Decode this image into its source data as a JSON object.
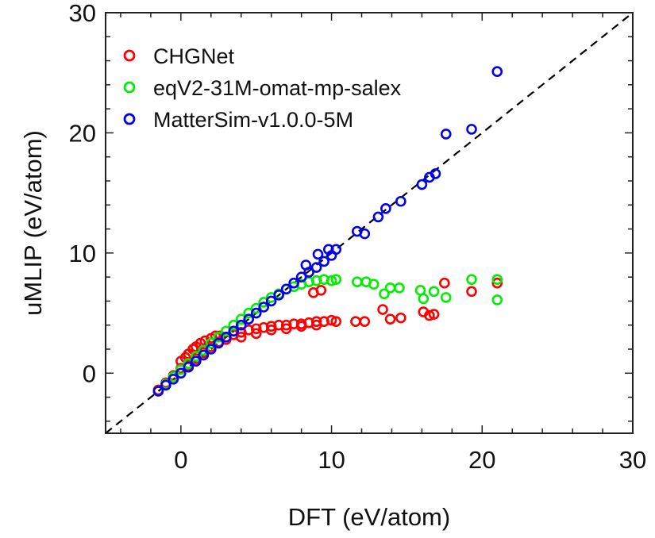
{
  "chart_data": {
    "type": "scatter",
    "title": "",
    "xlabel": "DFT (eV/atom)",
    "ylabel": "uMLIP (eV/atom)",
    "xlim": [
      -5,
      30
    ],
    "ylim": [
      -5,
      30
    ],
    "xticks": [
      0,
      10,
      20,
      30
    ],
    "yticks": [
      0,
      10,
      20,
      30
    ],
    "xtick_labels": [
      "0",
      "10",
      "20",
      "30"
    ],
    "ytick_labels": [
      "0",
      "10",
      "20",
      "30"
    ],
    "grid": false,
    "legend_position": "top-left",
    "reference_line": {
      "style": "dashed",
      "color": "#000000",
      "equation": "y = x"
    },
    "series": [
      {
        "name": "CHGNet",
        "color": "#ff0000",
        "points": [
          [
            -1.5,
            -1.4
          ],
          [
            -1,
            -0.8
          ],
          [
            -0.5,
            -0.2
          ],
          [
            0,
            0.4
          ],
          [
            0,
            1
          ],
          [
            0.3,
            1.3
          ],
          [
            0.5,
            1.6
          ],
          [
            0.8,
            2
          ],
          [
            1,
            2.2
          ],
          [
            1.3,
            2.5
          ],
          [
            1.6,
            2.7
          ],
          [
            2,
            2.9
          ],
          [
            2.3,
            3.1
          ],
          [
            2.6,
            3.1
          ],
          [
            3,
            3.0
          ],
          [
            3.5,
            3.2
          ],
          [
            4,
            3.4
          ],
          [
            4.5,
            3.6
          ],
          [
            5,
            3.7
          ],
          [
            5.5,
            3.8
          ],
          [
            6,
            3.9
          ],
          [
            6.5,
            4.0
          ],
          [
            7,
            4.0
          ],
          [
            7.5,
            4.1
          ],
          [
            8,
            4.1
          ],
          [
            8.5,
            4.2
          ],
          [
            9,
            4.3
          ],
          [
            9.5,
            4.3
          ],
          [
            10,
            4.4
          ],
          [
            10.3,
            4.3
          ],
          [
            0.5,
            0.6
          ],
          [
            1,
            1.2
          ],
          [
            1.5,
            1.7
          ],
          [
            2,
            2.2
          ],
          [
            2.5,
            2.6
          ],
          [
            3,
            2.8
          ],
          [
            4,
            3.0
          ],
          [
            5,
            3.3
          ],
          [
            6,
            3.6
          ],
          [
            7,
            3.7
          ],
          [
            8,
            3.9
          ],
          [
            9,
            4.0
          ],
          [
            8.8,
            6.7
          ],
          [
            9.3,
            6.9
          ],
          [
            11.6,
            4.3
          ],
          [
            12.2,
            4.3
          ],
          [
            13.4,
            5.3
          ],
          [
            13.9,
            4.5
          ],
          [
            14.6,
            4.6
          ],
          [
            16.1,
            5.1
          ],
          [
            16.5,
            4.8
          ],
          [
            16.8,
            4.9
          ],
          [
            17.5,
            7.5
          ],
          [
            19.3,
            6.8
          ],
          [
            21.0,
            7.5
          ]
        ]
      },
      {
        "name": "eqV2-31M-omat-mp-salex",
        "color": "#00ee00",
        "points": [
          [
            -1.5,
            -1.5
          ],
          [
            -1,
            -0.9
          ],
          [
            -0.5,
            -0.3
          ],
          [
            0,
            0.3
          ],
          [
            0.5,
            0.8
          ],
          [
            1,
            1.4
          ],
          [
            1.5,
            1.9
          ],
          [
            2,
            2.5
          ],
          [
            2.5,
            3
          ],
          [
            3,
            3.5
          ],
          [
            3.5,
            4
          ],
          [
            4,
            4.5
          ],
          [
            4.5,
            5
          ],
          [
            5,
            5.4
          ],
          [
            5.5,
            5.9
          ],
          [
            6,
            6.3
          ],
          [
            6.5,
            6.6
          ],
          [
            7,
            7
          ],
          [
            7.5,
            7.2
          ],
          [
            8,
            7.4
          ],
          [
            8.5,
            7.6
          ],
          [
            9,
            7.7
          ],
          [
            9.5,
            7.8
          ],
          [
            10,
            7.7
          ],
          [
            10.3,
            7.8
          ],
          [
            11.7,
            7.6
          ],
          [
            12.3,
            7.6
          ],
          [
            12.8,
            7.4
          ],
          [
            13.5,
            6.6
          ],
          [
            13.9,
            7.1
          ],
          [
            14.5,
            7.1
          ],
          [
            15.9,
            6.9
          ],
          [
            16.1,
            6.2
          ],
          [
            16.8,
            6.8
          ],
          [
            17.6,
            6.3
          ],
          [
            19.3,
            7.8
          ],
          [
            21.0,
            7.8
          ],
          [
            21.0,
            6.1
          ]
        ]
      },
      {
        "name": "MatterSim-v1.0.0-5M",
        "color": "#0000ee",
        "points": [
          [
            -1.5,
            -1.5
          ],
          [
            -1,
            -1
          ],
          [
            -0.5,
            -0.5
          ],
          [
            0,
            0
          ],
          [
            0.5,
            0.5
          ],
          [
            1,
            1
          ],
          [
            1.5,
            1.5
          ],
          [
            2,
            2
          ],
          [
            2.5,
            2.5
          ],
          [
            3,
            3
          ],
          [
            3.5,
            3.5
          ],
          [
            4,
            4
          ],
          [
            4.5,
            4.5
          ],
          [
            5,
            5
          ],
          [
            5.5,
            5.5
          ],
          [
            6,
            6
          ],
          [
            6.5,
            6.5
          ],
          [
            7,
            7
          ],
          [
            7.5,
            7.5
          ],
          [
            8,
            8
          ],
          [
            8.5,
            8.4
          ],
          [
            9,
            8.8
          ],
          [
            9.5,
            9.3
          ],
          [
            10,
            9.8
          ],
          [
            10.3,
            10.3
          ],
          [
            8.3,
            9.0
          ],
          [
            9.1,
            9.9
          ],
          [
            9.8,
            10.3
          ],
          [
            11.7,
            11.8
          ],
          [
            12.2,
            11.6
          ],
          [
            13.1,
            13.0
          ],
          [
            13.6,
            13.7
          ],
          [
            14.6,
            14.3
          ],
          [
            16.0,
            15.7
          ],
          [
            16.5,
            16.3
          ],
          [
            16.9,
            16.6
          ],
          [
            17.6,
            19.9
          ],
          [
            19.3,
            20.3
          ],
          [
            21.0,
            25.1
          ]
        ]
      }
    ]
  }
}
